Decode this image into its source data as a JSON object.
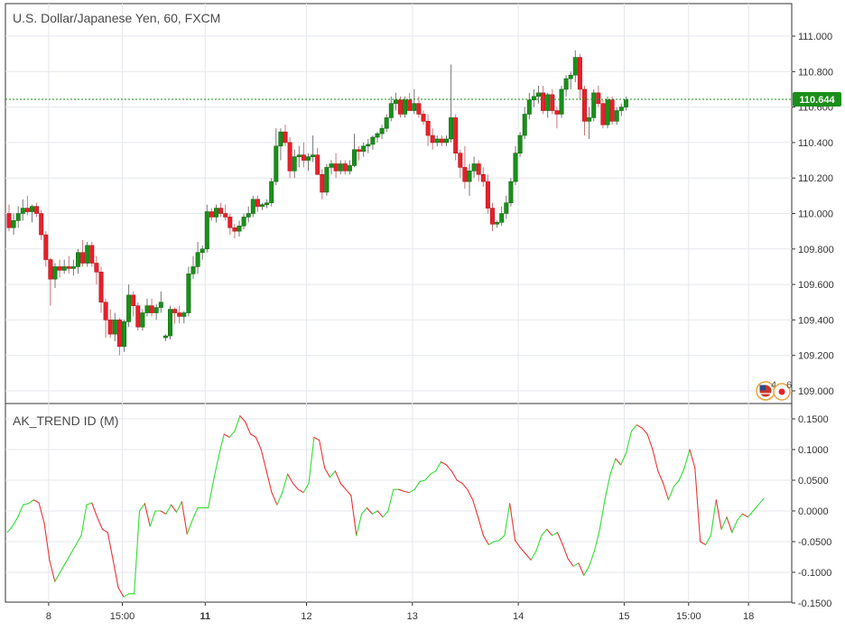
{
  "chart_data": [
    {
      "type": "candlestick",
      "title": "U.S. Dollar/Japanese Yen, 60, FXCM",
      "ylim": [
        109.0,
        111.2
      ],
      "y_ticks": [
        "111.000",
        "110.800",
        "110.600",
        "110.400",
        "110.200",
        "110.000",
        "109.800",
        "109.600",
        "109.400",
        "109.200",
        "109.000"
      ],
      "last_price": 110.644,
      "last_price_label": "110.644",
      "colors": {
        "up": "#1a8f1a",
        "down": "#e8202a",
        "last_price": "#1a8f1a"
      },
      "badges": {
        "events_count": "4",
        "alerts_count": "6"
      },
      "candles": [
        [
          110.0,
          110.05,
          109.9,
          109.92
        ],
        [
          109.92,
          110.0,
          109.88,
          109.96
        ],
        [
          109.96,
          110.04,
          109.92,
          110.0
        ],
        [
          110.0,
          110.08,
          109.96,
          110.03
        ],
        [
          110.03,
          110.1,
          109.99,
          110.01
        ],
        [
          110.01,
          110.05,
          109.95,
          110.04
        ],
        [
          110.04,
          110.06,
          109.98,
          110.0
        ],
        [
          110.0,
          110.02,
          109.85,
          109.88
        ],
        [
          109.88,
          109.9,
          109.7,
          109.74
        ],
        [
          109.74,
          109.75,
          109.48,
          109.63
        ],
        [
          109.63,
          109.72,
          109.58,
          109.7
        ],
        [
          109.7,
          109.74,
          109.64,
          109.68
        ],
        [
          109.68,
          109.74,
          109.66,
          109.7
        ],
        [
          109.7,
          109.76,
          109.66,
          109.69
        ],
        [
          109.69,
          109.74,
          109.65,
          109.7
        ],
        [
          109.7,
          109.8,
          109.66,
          109.78
        ],
        [
          109.78,
          109.85,
          109.7,
          109.72
        ],
        [
          109.72,
          109.84,
          109.7,
          109.82
        ],
        [
          109.82,
          109.84,
          109.7,
          109.72
        ],
        [
          109.72,
          109.76,
          109.6,
          109.67
        ],
        [
          109.67,
          109.7,
          109.44,
          109.5
        ],
        [
          109.5,
          109.52,
          109.3,
          109.4
        ],
        [
          109.4,
          109.46,
          109.3,
          109.32
        ],
        [
          109.32,
          109.44,
          109.28,
          109.4
        ],
        [
          109.4,
          109.41,
          109.2,
          109.25
        ],
        [
          109.25,
          109.4,
          109.22,
          109.39
        ],
        [
          109.39,
          109.6,
          109.36,
          109.54
        ],
        [
          109.54,
          109.56,
          109.42,
          109.48
        ],
        [
          109.48,
          109.5,
          109.34,
          109.36
        ],
        [
          109.36,
          109.46,
          109.34,
          109.44
        ],
        [
          109.44,
          109.52,
          109.42,
          109.48
        ],
        [
          109.48,
          109.52,
          109.42,
          109.44
        ],
        [
          109.44,
          109.49,
          109.4,
          109.47
        ],
        [
          109.47,
          109.56,
          109.44,
          109.5
        ],
        [
          109.3,
          109.32,
          109.28,
          109.31
        ],
        [
          109.31,
          109.48,
          109.29,
          109.46
        ],
        [
          109.46,
          109.47,
          109.38,
          109.44
        ],
        [
          109.44,
          109.48,
          109.38,
          109.42
        ],
        [
          109.42,
          109.45,
          109.38,
          109.44
        ],
        [
          109.44,
          109.7,
          109.42,
          109.66
        ],
        [
          109.66,
          109.76,
          109.63,
          109.7
        ],
        [
          109.7,
          109.84,
          109.66,
          109.78
        ],
        [
          109.78,
          109.82,
          109.74,
          109.8
        ],
        [
          109.8,
          110.05,
          109.78,
          110.01
        ],
        [
          110.01,
          110.03,
          109.96,
          109.98
        ],
        [
          109.98,
          110.05,
          109.95,
          110.03
        ],
        [
          110.03,
          110.06,
          109.98,
          110.0
        ],
        [
          110.0,
          110.05,
          109.96,
          109.98
        ],
        [
          109.98,
          110.0,
          109.88,
          109.92
        ],
        [
          109.92,
          109.94,
          109.86,
          109.9
        ],
        [
          109.9,
          109.96,
          109.87,
          109.93
        ],
        [
          109.93,
          110.0,
          109.91,
          109.98
        ],
        [
          109.98,
          110.04,
          109.95,
          110.0
        ],
        [
          110.0,
          110.1,
          109.98,
          110.08
        ],
        [
          110.08,
          110.1,
          110.01,
          110.04
        ],
        [
          110.04,
          110.06,
          110.02,
          110.05
        ],
        [
          110.05,
          110.08,
          110.03,
          110.06
        ],
        [
          110.06,
          110.2,
          110.04,
          110.18
        ],
        [
          110.18,
          110.48,
          110.16,
          110.38
        ],
        [
          110.38,
          110.48,
          110.3,
          110.46
        ],
        [
          110.46,
          110.5,
          110.38,
          110.4
        ],
        [
          110.4,
          110.43,
          110.2,
          110.24
        ],
        [
          110.24,
          110.36,
          110.2,
          110.32
        ],
        [
          110.32,
          110.38,
          110.26,
          110.33
        ],
        [
          110.33,
          110.4,
          110.26,
          110.3
        ],
        [
          110.3,
          110.34,
          110.24,
          110.32
        ],
        [
          110.32,
          110.44,
          110.29,
          110.33
        ],
        [
          110.33,
          110.37,
          110.24,
          110.22
        ],
        [
          110.22,
          110.25,
          110.08,
          110.12
        ],
        [
          110.12,
          110.28,
          110.1,
          110.26
        ],
        [
          110.26,
          110.3,
          110.22,
          110.28
        ],
        [
          110.28,
          110.34,
          110.2,
          110.24
        ],
        [
          110.24,
          110.3,
          110.22,
          110.28
        ],
        [
          110.28,
          110.3,
          110.22,
          110.24
        ],
        [
          110.24,
          110.3,
          110.22,
          110.27
        ],
        [
          110.27,
          110.45,
          110.26,
          110.36
        ],
        [
          110.36,
          110.38,
          110.3,
          110.35
        ],
        [
          110.35,
          110.4,
          110.32,
          110.38
        ],
        [
          110.38,
          110.42,
          110.34,
          110.39
        ],
        [
          110.39,
          110.44,
          110.36,
          110.43
        ],
        [
          110.43,
          110.46,
          110.4,
          110.45
        ],
        [
          110.45,
          110.5,
          110.42,
          110.48
        ],
        [
          110.48,
          110.56,
          110.46,
          110.54
        ],
        [
          110.54,
          110.66,
          110.52,
          110.62
        ],
        [
          110.62,
          110.68,
          110.58,
          110.64
        ],
        [
          110.64,
          110.66,
          110.54,
          110.56
        ],
        [
          110.56,
          110.66,
          110.54,
          110.64
        ],
        [
          110.64,
          110.68,
          110.6,
          110.58
        ],
        [
          110.58,
          110.7,
          110.56,
          110.62
        ],
        [
          110.62,
          110.66,
          110.54,
          110.56
        ],
        [
          110.56,
          110.58,
          110.5,
          110.52
        ],
        [
          110.52,
          110.56,
          110.38,
          110.44
        ],
        [
          110.44,
          110.48,
          110.36,
          110.4
        ],
        [
          110.4,
          110.44,
          110.38,
          110.42
        ],
        [
          110.42,
          110.44,
          110.38,
          110.4
        ],
        [
          110.4,
          110.44,
          110.38,
          110.42
        ],
        [
          110.42,
          110.84,
          110.4,
          110.54
        ],
        [
          110.54,
          110.56,
          110.3,
          110.34
        ],
        [
          110.34,
          110.36,
          110.2,
          110.26
        ],
        [
          110.26,
          110.38,
          110.14,
          110.18
        ],
        [
          110.18,
          110.28,
          110.1,
          110.24
        ],
        [
          110.24,
          110.32,
          110.2,
          110.28
        ],
        [
          110.28,
          110.3,
          110.18,
          110.22
        ],
        [
          110.22,
          110.26,
          110.15,
          110.18
        ],
        [
          110.18,
          110.22,
          110.0,
          110.03
        ],
        [
          110.03,
          110.06,
          109.9,
          109.94
        ],
        [
          109.94,
          109.96,
          109.92,
          109.95
        ],
        [
          109.95,
          110.04,
          109.93,
          110.0
        ],
        [
          110.0,
          110.1,
          109.97,
          110.06
        ],
        [
          110.06,
          110.2,
          110.04,
          110.18
        ],
        [
          110.18,
          110.38,
          110.16,
          110.34
        ],
        [
          110.34,
          110.46,
          110.32,
          110.44
        ],
        [
          110.44,
          110.6,
          110.42,
          110.56
        ],
        [
          110.56,
          110.68,
          110.53,
          110.64
        ],
        [
          110.64,
          110.7,
          110.6,
          110.66
        ],
        [
          110.66,
          110.72,
          110.62,
          110.68
        ],
        [
          110.68,
          110.72,
          110.56,
          110.58
        ],
        [
          110.58,
          110.68,
          110.54,
          110.67
        ],
        [
          110.67,
          110.7,
          110.56,
          110.58
        ],
        [
          110.58,
          110.6,
          110.48,
          110.56
        ],
        [
          110.56,
          110.72,
          110.54,
          110.7
        ],
        [
          110.7,
          110.78,
          110.66,
          110.76
        ],
        [
          110.76,
          110.8,
          110.7,
          110.78
        ],
        [
          110.78,
          110.92,
          110.74,
          110.88
        ],
        [
          110.88,
          110.9,
          110.64,
          110.7
        ],
        [
          110.7,
          110.72,
          110.44,
          110.52
        ],
        [
          110.52,
          110.6,
          110.42,
          110.54
        ],
        [
          110.54,
          110.7,
          110.52,
          110.68
        ],
        [
          110.68,
          110.72,
          110.6,
          110.62
        ],
        [
          110.62,
          110.64,
          110.48,
          110.5
        ],
        [
          110.5,
          110.66,
          110.48,
          110.64
        ],
        [
          110.64,
          110.66,
          110.5,
          110.52
        ],
        [
          110.52,
          110.6,
          110.5,
          110.58
        ],
        [
          110.58,
          110.62,
          110.55,
          110.6
        ],
        [
          110.6,
          110.66,
          110.58,
          110.64
        ]
      ],
      "x_ticks": [
        {
          "index": 9,
          "label": "8",
          "bold": false
        },
        {
          "index": 25,
          "label": "15:00",
          "bold": false
        },
        {
          "index": 43,
          "label": "11",
          "bold": true
        },
        {
          "index": 65,
          "label": "12",
          "bold": false
        },
        {
          "index": 88,
          "label": "13",
          "bold": false
        },
        {
          "index": 111,
          "label": "14",
          "bold": false
        },
        {
          "index": 134,
          "label": "15",
          "bold": false
        },
        {
          "index": 148,
          "label": "15:00",
          "bold": false
        },
        {
          "index": 161,
          "label": "18",
          "bold": false
        }
      ]
    },
    {
      "type": "line",
      "title": "AK_TREND ID (M)",
      "ylim": [
        -0.15,
        0.16
      ],
      "y_ticks": [
        "0.1500",
        "0.1000",
        "0.0500",
        "0.0000",
        "-0.0500",
        "-0.1000",
        "-0.1500"
      ],
      "colors": {
        "positive_slope": "#33dd33",
        "negative_slope": "#ee3333"
      },
      "values": [
        -0.035,
        -0.025,
        -0.01,
        0.01,
        0.012,
        0.018,
        0.013,
        -0.02,
        -0.08,
        -0.115,
        -0.1,
        -0.085,
        -0.07,
        -0.055,
        -0.04,
        0.01,
        0.013,
        -0.01,
        -0.03,
        -0.035,
        -0.08,
        -0.125,
        -0.14,
        -0.135,
        -0.135,
        0.0,
        0.012,
        -0.025,
        0.0,
        0.0,
        -0.005,
        0.01,
        -0.002,
        0.015,
        -0.038,
        -0.015,
        0.005,
        0.005,
        0.005,
        0.05,
        0.09,
        0.125,
        0.12,
        0.13,
        0.155,
        0.145,
        0.125,
        0.12,
        0.1,
        0.065,
        0.03,
        0.01,
        0.03,
        0.06,
        0.045,
        0.035,
        0.03,
        0.045,
        0.12,
        0.115,
        0.07,
        0.055,
        0.065,
        0.045,
        0.035,
        0.025,
        -0.04,
        -0.005,
        0.005,
        -0.005,
        0.0,
        -0.01,
        -0.0,
        0.035,
        0.035,
        0.032,
        0.03,
        0.035,
        0.048,
        0.05,
        0.06,
        0.065,
        0.08,
        0.075,
        0.065,
        0.05,
        0.045,
        0.035,
        0.018,
        -0.01,
        -0.04,
        -0.055,
        -0.05,
        -0.048,
        -0.04,
        0.012,
        -0.048,
        -0.06,
        -0.07,
        -0.08,
        -0.065,
        -0.04,
        -0.03,
        -0.04,
        -0.035,
        -0.055,
        -0.078,
        -0.09,
        -0.085,
        -0.105,
        -0.09,
        -0.065,
        -0.03,
        0.02,
        0.06,
        0.085,
        0.075,
        0.095,
        0.13,
        0.14,
        0.135,
        0.125,
        0.1,
        0.065,
        0.045,
        0.018,
        0.04,
        0.05,
        0.07,
        0.1,
        0.07,
        -0.05,
        -0.055,
        -0.04,
        0.018,
        -0.03,
        -0.01,
        -0.035,
        -0.015,
        -0.005,
        -0.01,
        0.0,
        0.01,
        0.02
      ]
    }
  ]
}
